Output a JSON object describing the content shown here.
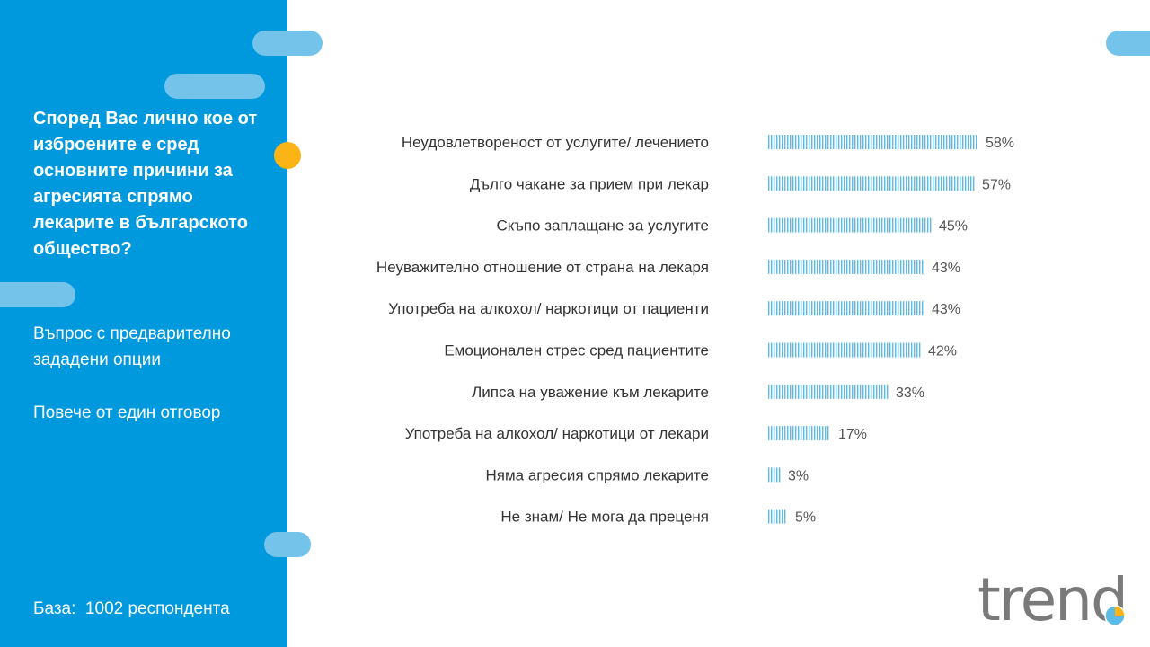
{
  "sidebar": {
    "question": "Според Вас лично кое от\nизброените е сред\nосновните причини за\nагресията спрямо\nлекарите в българското\nобщество?",
    "note1": "Въпрос с предварително\nзададени опции",
    "note2": "Повече от един отговор",
    "base": "База:  1002 респондента"
  },
  "logo": {
    "text": "trend"
  },
  "colors": {
    "sidebar": "#0099dd",
    "pill": "#74c3ea",
    "accent_dot": "#fbb415",
    "bar": "#5bbbe6",
    "logo": "#7a7a7a"
  },
  "chart_data": {
    "type": "bar",
    "orientation": "horizontal",
    "categories": [
      "Неудовлетвореност от услугите/ лечението",
      "Дълго чакане за прием при лекар",
      "Скъпо заплащане за услугите",
      "Неуважително отношение от страна на лекаря",
      "Употреба на алкохол/ наркотици от пациенти",
      "Емоционален стрес сред пациентите",
      "Липса на уважение към лекарите",
      "Употреба на алкохол/ наркотици от лекари",
      "Няма агресия спрямо лекарите",
      "Не знам/ Не мога да преценя"
    ],
    "values": [
      58,
      57,
      45,
      43,
      43,
      42,
      33,
      17,
      3,
      5
    ],
    "value_labels": [
      "58%",
      "57%",
      "45%",
      "43%",
      "43%",
      "42%",
      "33%",
      "17%",
      "3%",
      "5%"
    ],
    "unit": "%",
    "xlim": [
      0,
      100
    ],
    "grid": false,
    "legend": "none"
  }
}
